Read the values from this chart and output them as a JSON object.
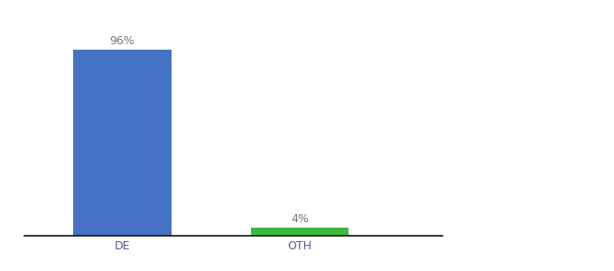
{
  "categories": [
    "DE",
    "OTH"
  ],
  "values": [
    96,
    4
  ],
  "bar_colors": [
    "#4472c4",
    "#3cb844"
  ],
  "ylim": [
    0,
    105
  ],
  "bar_width": 0.55,
  "label_fontsize": 9,
  "tick_fontsize": 9,
  "background_color": "#ffffff",
  "value_labels": [
    "96%",
    "4%"
  ],
  "label_color": "#777777",
  "tick_color": "#555599",
  "spine_color": "#111111",
  "x_positions": [
    0,
    1
  ],
  "xlim": [
    -0.55,
    1.8
  ]
}
